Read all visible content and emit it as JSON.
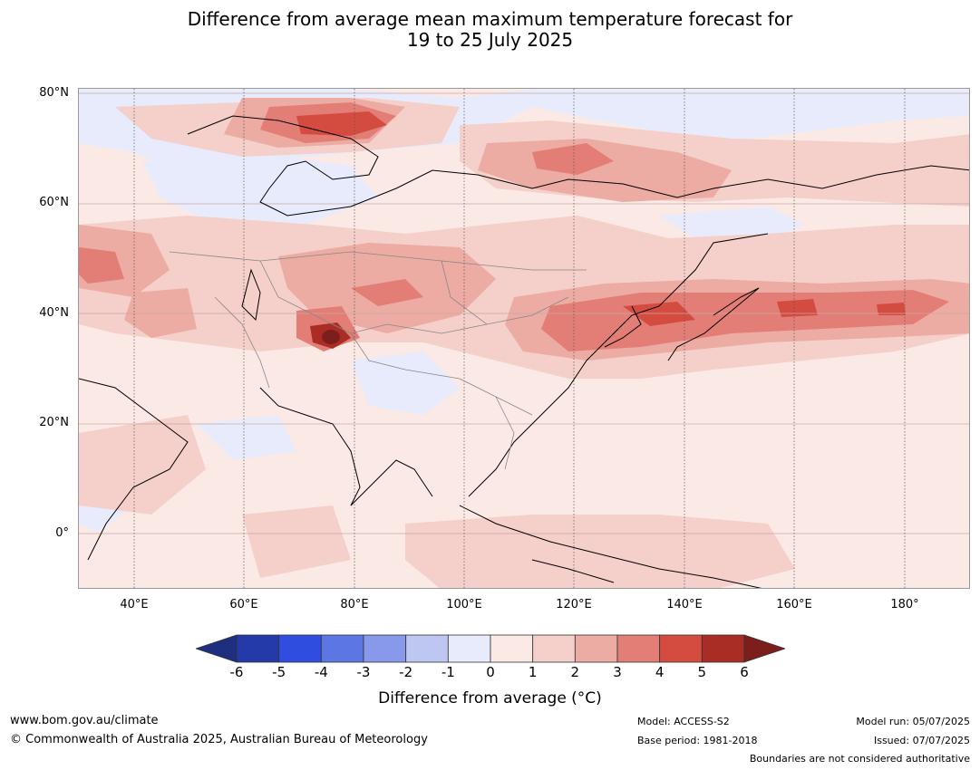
{
  "title": {
    "line1": "Difference from average mean maximum temperature forecast for",
    "line2": "19 to 25 July 2025"
  },
  "map": {
    "lat_labels": [
      "80°N",
      "60°N",
      "40°N",
      "20°N",
      "0°"
    ],
    "lon_labels": [
      "40°E",
      "60°E",
      "80°E",
      "100°E",
      "120°E",
      "140°E",
      "160°E",
      "180°"
    ]
  },
  "colorbar": {
    "ticks": [
      "-6",
      "-5",
      "-4",
      "-3",
      "-2",
      "-1",
      "0",
      "1",
      "2",
      "3",
      "4",
      "5",
      "6"
    ],
    "colors": [
      "#243aa8",
      "#2f4ee0",
      "#5c76e4",
      "#8898ea",
      "#bec6f2",
      "#e7ebfb",
      "#fbe9e6",
      "#f5cfc9",
      "#ecaba3",
      "#e27e75",
      "#d44b40",
      "#a92c25"
    ],
    "under_color": "#1e2f80",
    "over_color": "#7c1e1b",
    "label": "Difference from average (°C)"
  },
  "footer": {
    "website": "www.bom.gov.au/climate",
    "copyright": "© Commonwealth of Australia 2025, Australian Bureau of Meteorology",
    "model": "Model: ACCESS-S2",
    "base_period": "Base period: 1981-2018",
    "model_run": "Model run: 05/07/2025",
    "issued": "Issued: 07/07/2025",
    "disclaimer": "Boundaries are not considered authoritative"
  }
}
